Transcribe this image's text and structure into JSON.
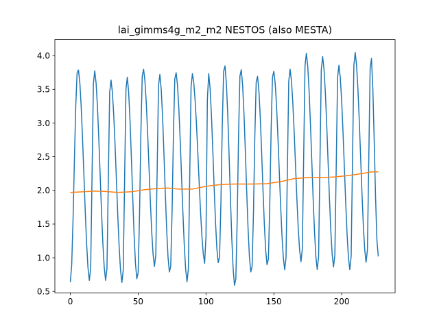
{
  "chart_data": {
    "type": "line",
    "title": "lai_gimms4g_m2_m2 NESTOS (also MESTA)",
    "xlabel": "",
    "ylabel": "",
    "xlim": [
      -11.4,
      239.4
    ],
    "ylim": [
      0.48,
      4.24
    ],
    "xticks": [
      0,
      50,
      100,
      150,
      200
    ],
    "yticks": [
      0.5,
      1.0,
      1.5,
      2.0,
      2.5,
      3.0,
      3.5,
      4.0
    ],
    "xtick_labels": [
      "0",
      "50",
      "100",
      "150",
      "200"
    ],
    "ytick_labels": [
      "0.5",
      "1.0",
      "1.5",
      "2.0",
      "2.5",
      "3.0",
      "3.5",
      "4.0"
    ],
    "grid": false,
    "legend": "none",
    "series": [
      {
        "color": "#1f77b4",
        "peaks": [
          [
            5.5,
            3.81
          ],
          [
            17.5,
            3.8
          ],
          [
            29.5,
            3.66
          ],
          [
            41.5,
            3.71
          ],
          [
            53.5,
            3.82
          ],
          [
            65.5,
            3.75
          ],
          [
            77.5,
            3.77
          ],
          [
            89.5,
            3.75
          ],
          [
            101.5,
            3.76
          ],
          [
            113.5,
            3.88
          ],
          [
            125.5,
            3.82
          ],
          [
            137.5,
            3.72
          ],
          [
            149.5,
            3.79
          ],
          [
            161.5,
            3.82
          ],
          [
            173.5,
            4.06
          ],
          [
            185.5,
            4.01
          ],
          [
            197.5,
            3.88
          ],
          [
            209.5,
            4.07
          ],
          [
            221.5,
            4.02
          ]
        ],
        "troughs": [
          [
            0,
            0.64
          ],
          [
            14.5,
            0.64
          ],
          [
            26.5,
            0.64
          ],
          [
            38.5,
            0.61
          ],
          [
            49.5,
            0.66
          ],
          [
            62.5,
            0.85
          ],
          [
            73.5,
            0.76
          ],
          [
            86.5,
            0.62
          ],
          [
            99.5,
            0.9
          ],
          [
            109.5,
            0.9
          ],
          [
            121.5,
            0.56
          ],
          [
            133.5,
            0.76
          ],
          [
            145.5,
            0.87
          ],
          [
            158.5,
            0.8
          ],
          [
            170.5,
            0.92
          ],
          [
            182.5,
            0.8
          ],
          [
            194.5,
            0.84
          ],
          [
            206.5,
            0.8
          ],
          [
            218.5,
            0.91
          ],
          [
            227,
            1.02
          ]
        ]
      },
      {
        "color": "#ff7f0e",
        "points": [
          [
            0,
            1.97
          ],
          [
            10,
            1.98
          ],
          [
            18,
            1.99
          ],
          [
            25,
            1.985
          ],
          [
            35,
            1.97
          ],
          [
            45,
            1.98
          ],
          [
            55,
            2.01
          ],
          [
            65,
            2.03
          ],
          [
            72,
            2.035
          ],
          [
            80,
            2.02
          ],
          [
            90,
            2.02
          ],
          [
            100,
            2.06
          ],
          [
            110,
            2.085
          ],
          [
            120,
            2.095
          ],
          [
            135,
            2.095
          ],
          [
            145,
            2.1
          ],
          [
            155,
            2.13
          ],
          [
            165,
            2.175
          ],
          [
            175,
            2.19
          ],
          [
            185,
            2.19
          ],
          [
            195,
            2.2
          ],
          [
            205,
            2.22
          ],
          [
            215,
            2.25
          ],
          [
            222,
            2.275
          ],
          [
            227,
            2.275
          ]
        ]
      }
    ]
  }
}
